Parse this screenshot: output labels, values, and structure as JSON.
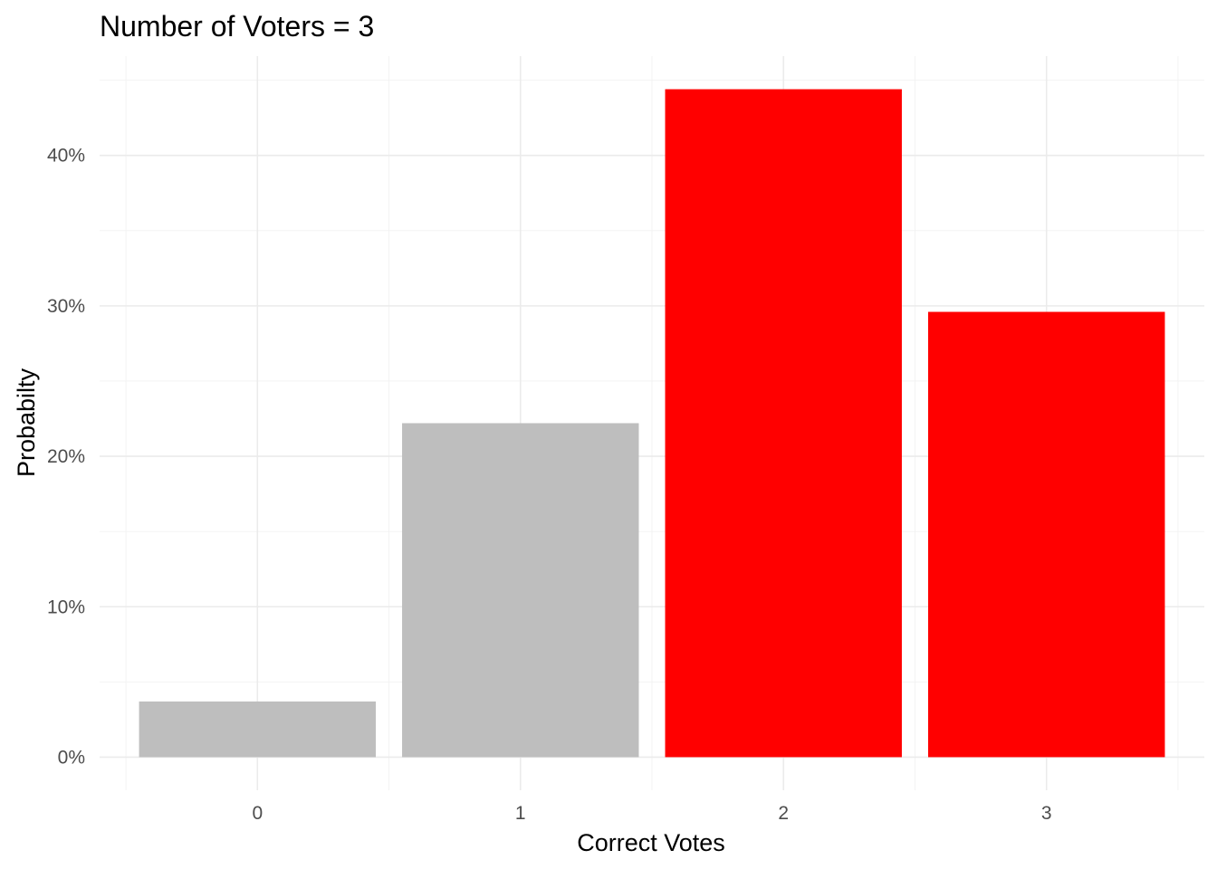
{
  "chart_data": {
    "type": "bar",
    "title": "Number of Voters = 3",
    "xlabel": "Correct Votes",
    "ylabel": "Probabilty",
    "categories": [
      "0",
      "1",
      "2",
      "3"
    ],
    "values": [
      3.7,
      22.2,
      44.4,
      29.6
    ],
    "value_unit": "%",
    "bar_colors": [
      "#bebebe",
      "#bebebe",
      "#ff0000",
      "#ff0000"
    ],
    "ylim": [
      -2.2,
      46.6
    ],
    "y_ticks": [
      0,
      10,
      20,
      30,
      40
    ],
    "y_tick_labels": [
      "0%",
      "10%",
      "20%",
      "30%",
      "40%"
    ],
    "grid": true,
    "legend": "none"
  }
}
